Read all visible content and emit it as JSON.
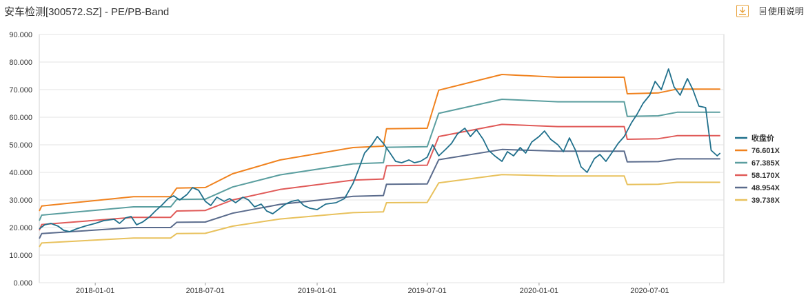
{
  "header": {
    "title": "安车检测[300572.SZ] - PE/PB-Band",
    "help_label": "使用说明",
    "download_icon": "download-icon"
  },
  "chart_data": {
    "type": "line",
    "title": "安车检测[300572.SZ] - PE/PB-Band",
    "y_ticks": [
      "0.000",
      "10.000",
      "20.000",
      "30.000",
      "40.000",
      "50.000",
      "60.000",
      "70.000",
      "80.000",
      "90.000"
    ],
    "ylim": [
      0,
      90
    ],
    "x_ticks": [
      "2018-01-01",
      "2018-07-01",
      "2019-01-01",
      "2019-07-01",
      "2020-01-01",
      "2020-07-01"
    ],
    "xlim": [
      "2017-10-01",
      "2020-10-31"
    ],
    "grid": true,
    "legend_position": "right",
    "series": [
      {
        "name": "收盘价",
        "color": "#1f6f8b",
        "points": [
          [
            "2017-10-01",
            19.5
          ],
          [
            "2017-10-10",
            21.0
          ],
          [
            "2017-10-20",
            21.5
          ],
          [
            "2017-11-01",
            20.5
          ],
          [
            "2017-11-10",
            19.0
          ],
          [
            "2017-11-20",
            18.5
          ],
          [
            "2017-12-01",
            19.5
          ],
          [
            "2017-12-15",
            20.5
          ],
          [
            "2018-01-01",
            21.5
          ],
          [
            "2018-01-15",
            22.5
          ],
          [
            "2018-02-01",
            23.0
          ],
          [
            "2018-02-10",
            21.5
          ],
          [
            "2018-02-20",
            23.5
          ],
          [
            "2018-03-01",
            24.0
          ],
          [
            "2018-03-10",
            21.0
          ],
          [
            "2018-03-20",
            22.0
          ],
          [
            "2018-04-01",
            24.0
          ],
          [
            "2018-04-10",
            26.0
          ],
          [
            "2018-04-20",
            28.0
          ],
          [
            "2018-05-01",
            30.5
          ],
          [
            "2018-05-10",
            31.5
          ],
          [
            "2018-05-20",
            30.0
          ],
          [
            "2018-06-01",
            32.0
          ],
          [
            "2018-06-10",
            34.5
          ],
          [
            "2018-06-20",
            33.5
          ],
          [
            "2018-07-01",
            29.5
          ],
          [
            "2018-07-10",
            28.0
          ],
          [
            "2018-07-20",
            31.0
          ],
          [
            "2018-08-01",
            29.5
          ],
          [
            "2018-08-10",
            30.5
          ],
          [
            "2018-08-20",
            29.0
          ],
          [
            "2018-09-01",
            31.0
          ],
          [
            "2018-09-10",
            30.0
          ],
          [
            "2018-09-20",
            27.5
          ],
          [
            "2018-10-01",
            28.5
          ],
          [
            "2018-10-10",
            26.0
          ],
          [
            "2018-10-20",
            25.0
          ],
          [
            "2018-11-01",
            27.0
          ],
          [
            "2018-11-10",
            28.5
          ],
          [
            "2018-11-20",
            29.5
          ],
          [
            "2018-12-01",
            30.0
          ],
          [
            "2018-12-10",
            28.0
          ],
          [
            "2018-12-20",
            27.0
          ],
          [
            "2019-01-01",
            26.5
          ],
          [
            "2019-01-15",
            28.5
          ],
          [
            "2019-02-01",
            29.0
          ],
          [
            "2019-02-15",
            30.5
          ],
          [
            "2019-03-01",
            36.0
          ],
          [
            "2019-03-10",
            41.0
          ],
          [
            "2019-03-20",
            47.0
          ],
          [
            "2019-04-01",
            50.0
          ],
          [
            "2019-04-10",
            53.0
          ],
          [
            "2019-04-20",
            50.5
          ],
          [
            "2019-05-01",
            47.0
          ],
          [
            "2019-05-10",
            44.0
          ],
          [
            "2019-05-20",
            43.5
          ],
          [
            "2019-06-01",
            44.5
          ],
          [
            "2019-06-10",
            43.5
          ],
          [
            "2019-06-20",
            44.0
          ],
          [
            "2019-07-01",
            45.5
          ],
          [
            "2019-07-10",
            50.0
          ],
          [
            "2019-07-20",
            46.0
          ],
          [
            "2019-08-01",
            48.5
          ],
          [
            "2019-08-10",
            50.5
          ],
          [
            "2019-08-20",
            54.0
          ],
          [
            "2019-09-01",
            56.0
          ],
          [
            "2019-09-10",
            53.0
          ],
          [
            "2019-09-20",
            55.5
          ],
          [
            "2019-10-01",
            52.0
          ],
          [
            "2019-10-10",
            48.0
          ],
          [
            "2019-10-20",
            46.0
          ],
          [
            "2019-11-01",
            44.0
          ],
          [
            "2019-11-10",
            47.5
          ],
          [
            "2019-11-20",
            46.0
          ],
          [
            "2019-12-01",
            49.0
          ],
          [
            "2019-12-10",
            47.0
          ],
          [
            "2019-12-20",
            51.0
          ],
          [
            "2020-01-01",
            53.0
          ],
          [
            "2020-01-10",
            55.0
          ],
          [
            "2020-01-20",
            52.0
          ],
          [
            "2020-02-01",
            50.0
          ],
          [
            "2020-02-10",
            47.5
          ],
          [
            "2020-02-20",
            52.5
          ],
          [
            "2020-03-01",
            48.0
          ],
          [
            "2020-03-10",
            42.0
          ],
          [
            "2020-03-20",
            40.0
          ],
          [
            "2020-04-01",
            45.0
          ],
          [
            "2020-04-10",
            46.5
          ],
          [
            "2020-04-20",
            44.0
          ],
          [
            "2020-05-01",
            47.5
          ],
          [
            "2020-05-10",
            50.5
          ],
          [
            "2020-05-20",
            53.0
          ],
          [
            "2020-06-01",
            58.0
          ],
          [
            "2020-06-10",
            61.0
          ],
          [
            "2020-06-20",
            65.0
          ],
          [
            "2020-07-01",
            68.0
          ],
          [
            "2020-07-10",
            73.0
          ],
          [
            "2020-07-20",
            70.0
          ],
          [
            "2020-08-01",
            77.5
          ],
          [
            "2020-08-10",
            71.0
          ],
          [
            "2020-08-20",
            68.0
          ],
          [
            "2020-09-01",
            74.0
          ],
          [
            "2020-09-10",
            70.0
          ],
          [
            "2020-09-20",
            64.0
          ],
          [
            "2020-10-01",
            63.5
          ],
          [
            "2020-10-10",
            48.0
          ],
          [
            "2020-10-20",
            46.0
          ],
          [
            "2020-10-25",
            47.0
          ]
        ]
      },
      {
        "name": "76.601X",
        "color": "#f0821e",
        "points": [
          [
            "2017-10-01",
            26.0
          ],
          [
            "2017-10-05",
            27.8
          ],
          [
            "2018-03-05",
            31.2
          ],
          [
            "2018-05-05",
            31.2
          ],
          [
            "2018-05-15",
            34.3
          ],
          [
            "2018-07-01",
            34.5
          ],
          [
            "2018-08-15",
            39.5
          ],
          [
            "2018-11-01",
            44.5
          ],
          [
            "2019-03-01",
            49.0
          ],
          [
            "2019-04-20",
            49.5
          ],
          [
            "2019-04-25",
            55.8
          ],
          [
            "2019-07-01",
            56.0
          ],
          [
            "2019-07-20",
            69.8
          ],
          [
            "2019-11-01",
            75.5
          ],
          [
            "2020-02-01",
            74.5
          ],
          [
            "2020-05-20",
            74.5
          ],
          [
            "2020-05-25",
            68.5
          ],
          [
            "2020-07-15",
            68.8
          ],
          [
            "2020-08-15",
            70.2
          ],
          [
            "2020-10-25",
            70.2
          ]
        ]
      },
      {
        "name": "67.385X",
        "color": "#5a9e9f",
        "points": [
          [
            "2017-10-01",
            22.5
          ],
          [
            "2017-10-05",
            24.5
          ],
          [
            "2018-03-05",
            27.5
          ],
          [
            "2018-05-05",
            27.5
          ],
          [
            "2018-05-15",
            30.2
          ],
          [
            "2018-07-01",
            30.3
          ],
          [
            "2018-08-15",
            34.7
          ],
          [
            "2018-11-01",
            39.1
          ],
          [
            "2019-03-01",
            43.1
          ],
          [
            "2019-04-20",
            43.5
          ],
          [
            "2019-04-25",
            49.1
          ],
          [
            "2019-07-01",
            49.3
          ],
          [
            "2019-07-20",
            61.4
          ],
          [
            "2019-11-01",
            66.5
          ],
          [
            "2020-02-01",
            65.6
          ],
          [
            "2020-05-20",
            65.6
          ],
          [
            "2020-05-25",
            60.3
          ],
          [
            "2020-07-15",
            60.5
          ],
          [
            "2020-08-15",
            61.8
          ],
          [
            "2020-10-25",
            61.8
          ]
        ]
      },
      {
        "name": "58.170X",
        "color": "#e05a58",
        "points": [
          [
            "2017-10-01",
            19.0
          ],
          [
            "2017-10-05",
            21.1
          ],
          [
            "2018-03-05",
            23.7
          ],
          [
            "2018-05-05",
            23.7
          ],
          [
            "2018-05-15",
            26.0
          ],
          [
            "2018-07-01",
            26.2
          ],
          [
            "2018-08-15",
            30.0
          ],
          [
            "2018-11-01",
            33.8
          ],
          [
            "2019-03-01",
            37.2
          ],
          [
            "2019-04-20",
            37.6
          ],
          [
            "2019-04-25",
            42.4
          ],
          [
            "2019-07-01",
            42.6
          ],
          [
            "2019-07-20",
            53.0
          ],
          [
            "2019-11-01",
            57.4
          ],
          [
            "2020-02-01",
            56.6
          ],
          [
            "2020-05-20",
            56.6
          ],
          [
            "2020-05-25",
            52.0
          ],
          [
            "2020-07-15",
            52.2
          ],
          [
            "2020-08-15",
            53.3
          ],
          [
            "2020-10-25",
            53.3
          ]
        ]
      },
      {
        "name": "48.954X",
        "color": "#5a6b8c",
        "points": [
          [
            "2017-10-01",
            16.0
          ],
          [
            "2017-10-05",
            17.8
          ],
          [
            "2018-03-05",
            20.0
          ],
          [
            "2018-05-05",
            20.0
          ],
          [
            "2018-05-15",
            21.9
          ],
          [
            "2018-07-01",
            22.0
          ],
          [
            "2018-08-15",
            25.2
          ],
          [
            "2018-11-01",
            28.4
          ],
          [
            "2019-03-01",
            31.3
          ],
          [
            "2019-04-20",
            31.6
          ],
          [
            "2019-04-25",
            35.7
          ],
          [
            "2019-07-01",
            35.8
          ],
          [
            "2019-07-20",
            44.6
          ],
          [
            "2019-11-01",
            48.3
          ],
          [
            "2020-02-01",
            47.7
          ],
          [
            "2020-05-20",
            47.7
          ],
          [
            "2020-05-25",
            43.8
          ],
          [
            "2020-07-15",
            43.9
          ],
          [
            "2020-08-15",
            44.9
          ],
          [
            "2020-10-25",
            44.9
          ]
        ]
      },
      {
        "name": "39.738X",
        "color": "#e8c15c",
        "points": [
          [
            "2017-10-01",
            13.0
          ],
          [
            "2017-10-05",
            14.4
          ],
          [
            "2018-03-05",
            16.2
          ],
          [
            "2018-05-05",
            16.2
          ],
          [
            "2018-05-15",
            17.8
          ],
          [
            "2018-07-01",
            17.9
          ],
          [
            "2018-08-15",
            20.5
          ],
          [
            "2018-11-01",
            23.1
          ],
          [
            "2019-03-01",
            25.4
          ],
          [
            "2019-04-20",
            25.7
          ],
          [
            "2019-04-25",
            29.0
          ],
          [
            "2019-07-01",
            29.1
          ],
          [
            "2019-07-20",
            36.2
          ],
          [
            "2019-11-01",
            39.2
          ],
          [
            "2020-02-01",
            38.7
          ],
          [
            "2020-05-20",
            38.7
          ],
          [
            "2020-05-25",
            35.6
          ],
          [
            "2020-07-15",
            35.7
          ],
          [
            "2020-08-15",
            36.4
          ],
          [
            "2020-10-25",
            36.4
          ]
        ]
      }
    ]
  }
}
